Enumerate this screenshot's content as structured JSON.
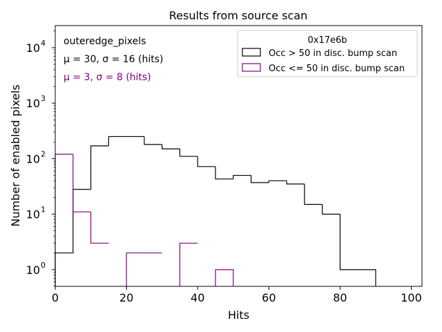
{
  "chart_data": {
    "type": "histogram",
    "title": "Results from source scan",
    "xlabel": "Hits",
    "ylabel": "Number of enabled pixels",
    "xlim": [
      0,
      103
    ],
    "ylim": [
      0.5,
      25000
    ],
    "yscale": "log",
    "x_ticks": [
      0,
      20,
      40,
      60,
      80,
      100
    ],
    "x_tick_labels": [
      "0",
      "20",
      "40",
      "60",
      "80",
      "100"
    ],
    "y_ticks": [
      1,
      10,
      100,
      1000,
      10000
    ],
    "y_tick_labels": [
      "10",
      "10",
      "10",
      "10",
      "10"
    ],
    "y_tick_exponents": [
      "0",
      "1",
      "2",
      "3",
      "4"
    ],
    "annotations": {
      "name": "outeredge_pixels",
      "stats_black": "μ = 30, σ = 16 (hits)",
      "stats_purple": "μ = 3, σ = 8 (hits)"
    },
    "legend": {
      "title": "0x17e6b",
      "placement": "top-right",
      "entries": [
        {
          "label": "Occ > 50 in disc. bump scan",
          "color": "#000000"
        },
        {
          "label": "Occ <= 50 in disc. bump scan",
          "color": "#800080"
        }
      ]
    },
    "bin_width": 5,
    "series": [
      {
        "name": "Occ > 50 in disc. bump scan",
        "color": "#000000",
        "bin_edges": [
          0,
          5,
          10,
          15,
          20,
          25,
          30,
          35,
          40,
          45,
          50,
          55,
          60,
          65,
          70,
          75,
          80,
          85,
          90
        ],
        "values": [
          2,
          28,
          170,
          250,
          250,
          180,
          150,
          110,
          72,
          43,
          50,
          37,
          40,
          35,
          15,
          10,
          1,
          1
        ]
      },
      {
        "name": "Occ <= 50 in disc. bump scan",
        "color": "#800080",
        "bin_edges": [
          0,
          5,
          10,
          15,
          20,
          25,
          30,
          35,
          40,
          45,
          50
        ],
        "values": [
          120,
          11,
          3,
          0,
          2,
          2,
          0,
          3,
          0,
          1
        ]
      }
    ]
  }
}
